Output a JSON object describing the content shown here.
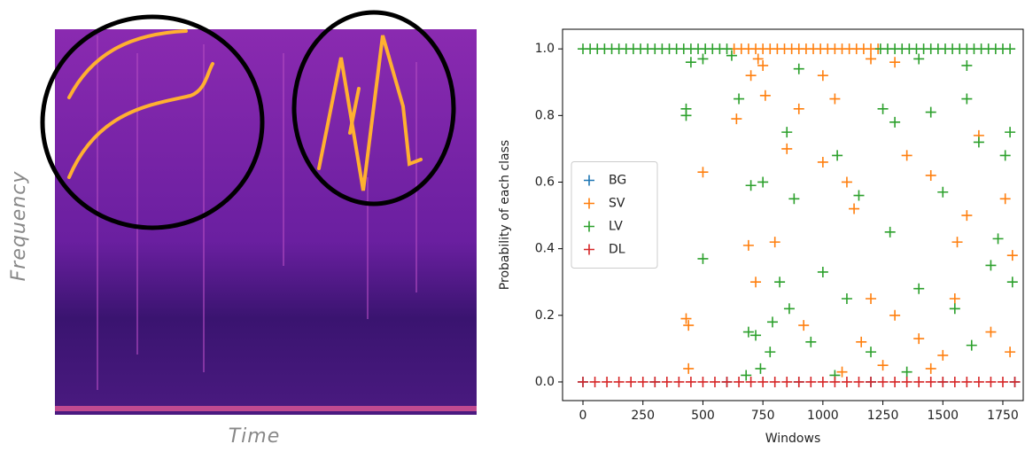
{
  "chart_data": [
    {
      "type": "spectrogram",
      "xlabel": "Time",
      "ylabel": "Frequency"
    },
    {
      "type": "scatter",
      "xlabel": "Windows",
      "ylabel": "Probability of each class",
      "xlim": [
        -85,
        1835
      ],
      "ylim": [
        -0.056,
        1.059
      ],
      "xticks": [
        0,
        250,
        500,
        750,
        1000,
        1250,
        1500,
        1750
      ],
      "yticks": [
        {
          "value": 0,
          "label": "0.0"
        },
        {
          "value": 0.2,
          "label": "0.2"
        },
        {
          "value": 0.4,
          "label": "0.4"
        },
        {
          "value": 0.6,
          "label": "0.6"
        },
        {
          "value": 0.8,
          "label": "0.8"
        },
        {
          "value": 1,
          "label": "1.0"
        }
      ],
      "legend": "center left",
      "series": [
        {
          "name": "BG",
          "color": "#1f77b4",
          "x": [
            0,
            300,
            600,
            900,
            1200,
            1500,
            1800
          ],
          "values": [
            0,
            0,
            0,
            0,
            0,
            0,
            0
          ]
        },
        {
          "name": "SV",
          "color": "#ff7f0e",
          "x": [
            630,
            660,
            690,
            720,
            750,
            780,
            810,
            840,
            870,
            900,
            930,
            960,
            990,
            1020,
            1050,
            1080,
            1110,
            1140,
            1170,
            1200,
            1230,
            500,
            430,
            440,
            640,
            700,
            720,
            760,
            800,
            850,
            900,
            920,
            1000,
            1080,
            1100,
            1130,
            1160,
            1200,
            1250,
            1300,
            1350,
            1400,
            1450,
            1500,
            1560,
            1600,
            1650,
            1700,
            1760,
            1780,
            1790,
            690,
            730,
            1050,
            1300,
            1450,
            1550,
            440,
            750,
            1000,
            1200
          ],
          "values": [
            1,
            1,
            1,
            1,
            1,
            1,
            1,
            1,
            1,
            1,
            1,
            1,
            1,
            1,
            1,
            1,
            1,
            1,
            1,
            1,
            1,
            0.63,
            0.19,
            0.17,
            0.79,
            0.92,
            0.3,
            0.86,
            0.42,
            0.7,
            0.82,
            0.17,
            0.66,
            0.03,
            0.6,
            0.52,
            0.12,
            0.25,
            0.05,
            0.2,
            0.68,
            0.13,
            0.62,
            0.08,
            0.42,
            0.5,
            0.74,
            0.15,
            0.55,
            0.09,
            0.38,
            0.41,
            0.97,
            0.85,
            0.96,
            0.04,
            0.25,
            0.04,
            0.95,
            0.92,
            0.97
          ]
        },
        {
          "name": "LV",
          "color": "#2ca02c",
          "x": [
            0,
            30,
            60,
            90,
            120,
            150,
            180,
            210,
            240,
            270,
            300,
            330,
            360,
            390,
            420,
            450,
            480,
            510,
            540,
            570,
            600,
            1240,
            1270,
            1300,
            1330,
            1360,
            1390,
            1420,
            1450,
            1480,
            1510,
            1540,
            1570,
            1600,
            1630,
            1660,
            1690,
            1720,
            1750,
            1780,
            430,
            430,
            450,
            500,
            500,
            620,
            650,
            700,
            720,
            750,
            780,
            790,
            820,
            850,
            860,
            880,
            900,
            950,
            1000,
            1050,
            1060,
            1100,
            1150,
            1200,
            1250,
            1280,
            1300,
            1350,
            1400,
            1450,
            1500,
            1550,
            1600,
            1620,
            1650,
            1700,
            1730,
            1760,
            1790,
            1780,
            680,
            690,
            740,
            1400,
            1600
          ],
          "values": [
            1,
            1,
            1,
            1,
            1,
            1,
            1,
            1,
            1,
            1,
            1,
            1,
            1,
            1,
            1,
            1,
            1,
            1,
            1,
            1,
            1,
            1,
            1,
            1,
            1,
            1,
            1,
            1,
            1,
            1,
            1,
            1,
            1,
            1,
            1,
            1,
            1,
            1,
            1,
            1,
            0.82,
            0.8,
            0.96,
            0.37,
            0.97,
            0.98,
            0.85,
            0.59,
            0.14,
            0.6,
            0.09,
            0.18,
            0.3,
            0.75,
            0.22,
            0.55,
            0.94,
            0.12,
            0.33,
            0.02,
            0.68,
            0.25,
            0.56,
            0.09,
            0.82,
            0.45,
            0.78,
            0.03,
            0.28,
            0.81,
            0.57,
            0.22,
            0.85,
            0.11,
            0.72,
            0.35,
            0.43,
            0.68,
            0.3,
            0.75,
            0.02,
            0.15,
            0.04,
            0.97,
            0.95
          ]
        },
        {
          "name": "DL",
          "color": "#d62728",
          "x": [
            0,
            50,
            100,
            150,
            200,
            250,
            300,
            350,
            400,
            450,
            500,
            550,
            600,
            650,
            700,
            750,
            800,
            850,
            900,
            950,
            1000,
            1050,
            1100,
            1150,
            1200,
            1250,
            1300,
            1350,
            1400,
            1450,
            1500,
            1550,
            1600,
            1650,
            1700,
            1750,
            1800
          ],
          "values": [
            0,
            0,
            0,
            0,
            0,
            0,
            0,
            0,
            0,
            0,
            0,
            0,
            0,
            0,
            0,
            0,
            0,
            0,
            0,
            0,
            0,
            0,
            0,
            0,
            0,
            0,
            0,
            0,
            0,
            0,
            0,
            0,
            0,
            0,
            0,
            0,
            0
          ]
        }
      ]
    }
  ]
}
